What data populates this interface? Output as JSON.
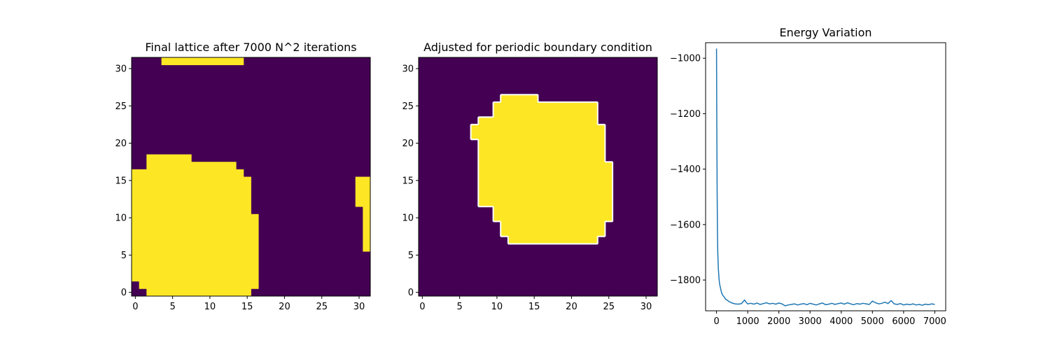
{
  "chart_data": [
    {
      "type": "heatmap",
      "title": "Final lattice after 7000 N^2 iterations",
      "grid_size": 32,
      "values": [
        0,
        1
      ],
      "colors": {
        "0": "#440154",
        "1": "#fde725"
      },
      "filled_cells": [
        {
          "rows": [
            0,
            0
          ],
          "cols": [
            2,
            15
          ]
        },
        {
          "rows": [
            1,
            1
          ],
          "cols": [
            1,
            16
          ]
        },
        {
          "rows": [
            2,
            2
          ],
          "cols": [
            0,
            16
          ]
        },
        {
          "rows": [
            3,
            10
          ],
          "cols": [
            0,
            16
          ]
        },
        {
          "rows": [
            11,
            15
          ],
          "cols": [
            0,
            15
          ]
        },
        {
          "rows": [
            16,
            16
          ],
          "cols": [
            0,
            14
          ]
        },
        {
          "rows": [
            17,
            17
          ],
          "cols": [
            2,
            13
          ]
        },
        {
          "rows": [
            18,
            18
          ],
          "cols": [
            2,
            7
          ]
        },
        {
          "rows": [
            31,
            31
          ],
          "cols": [
            4,
            14
          ]
        },
        {
          "rows": [
            6,
            11
          ],
          "cols": [
            31,
            31
          ]
        },
        {
          "rows": [
            12,
            15
          ],
          "cols": [
            30,
            31
          ]
        }
      ],
      "xticks": [
        0,
        5,
        10,
        15,
        20,
        25,
        30
      ],
      "yticks": [
        0,
        5,
        10,
        15,
        20,
        25,
        30
      ],
      "xlim": [
        -0.5,
        31.5
      ],
      "ylim": [
        -0.5,
        31.5
      ]
    },
    {
      "type": "heatmap",
      "title": "Adjusted for periodic boundary condition",
      "grid_size": 32,
      "values": [
        0,
        1
      ],
      "colors": {
        "0": "#440154",
        "1": "#fde725",
        "contour": "#ffffff"
      },
      "filled_cells": [
        {
          "rows": [
            7,
            7
          ],
          "cols": [
            12,
            23
          ]
        },
        {
          "rows": [
            8,
            9
          ],
          "cols": [
            11,
            24
          ]
        },
        {
          "rows": [
            10,
            11
          ],
          "cols": [
            10,
            25
          ]
        },
        {
          "rows": [
            12,
            17
          ],
          "cols": [
            8,
            25
          ]
        },
        {
          "rows": [
            18,
            20
          ],
          "cols": [
            8,
            24
          ]
        },
        {
          "rows": [
            21,
            22
          ],
          "cols": [
            7,
            24
          ]
        },
        {
          "rows": [
            23,
            23
          ],
          "cols": [
            8,
            23
          ]
        },
        {
          "rows": [
            24,
            25
          ],
          "cols": [
            10,
            23
          ]
        },
        {
          "rows": [
            26,
            26
          ],
          "cols": [
            11,
            15
          ]
        }
      ],
      "xticks": [
        0,
        5,
        10,
        15,
        20,
        25,
        30
      ],
      "yticks": [
        0,
        5,
        10,
        15,
        20,
        25,
        30
      ],
      "xlim": [
        -0.5,
        31.5
      ],
      "ylim": [
        -0.5,
        31.5
      ]
    },
    {
      "type": "line",
      "title": "Energy Variation",
      "series": [
        {
          "x": [
            0,
            10,
            20,
            30,
            40,
            60,
            80,
            100,
            130,
            160,
            200,
            250,
            300,
            350,
            400,
            450,
            500,
            600,
            700,
            800,
            900,
            950,
            1000,
            1100,
            1200,
            1300,
            1400,
            1500,
            1600,
            1700,
            1800,
            1900,
            2000,
            2100,
            2200,
            2300,
            2400,
            2500,
            2600,
            2700,
            2800,
            2900,
            3000,
            3100,
            3200,
            3300,
            3400,
            3500,
            3600,
            3700,
            3800,
            3900,
            4000,
            4100,
            4200,
            4300,
            4400,
            4500,
            4600,
            4700,
            4800,
            4900,
            5000,
            5100,
            5200,
            5300,
            5400,
            5500,
            5600,
            5700,
            5800,
            5900,
            6000,
            6100,
            6200,
            6300,
            6400,
            6500,
            6600,
            6700,
            6800,
            6900,
            7000
          ],
          "y": [
            -965,
            -1250,
            -1480,
            -1620,
            -1700,
            -1760,
            -1795,
            -1815,
            -1830,
            -1845,
            -1855,
            -1862,
            -1870,
            -1873,
            -1878,
            -1880,
            -1883,
            -1886,
            -1887,
            -1885,
            -1872,
            -1880,
            -1886,
            -1884,
            -1887,
            -1883,
            -1888,
            -1885,
            -1882,
            -1886,
            -1884,
            -1887,
            -1883,
            -1886,
            -1893,
            -1890,
            -1888,
            -1886,
            -1890,
            -1887,
            -1885,
            -1889,
            -1884,
            -1887,
            -1890,
            -1886,
            -1883,
            -1889,
            -1887,
            -1884,
            -1888,
            -1885,
            -1883,
            -1887,
            -1882,
            -1886,
            -1889,
            -1885,
            -1887,
            -1884,
            -1886,
            -1888,
            -1876,
            -1882,
            -1886,
            -1884,
            -1880,
            -1885,
            -1874,
            -1886,
            -1888,
            -1885,
            -1890,
            -1887,
            -1889,
            -1886,
            -1890,
            -1888,
            -1891,
            -1887,
            -1889,
            -1886,
            -1888
          ],
          "color": "#1f77b4"
        }
      ],
      "xticks": [
        0,
        1000,
        2000,
        3000,
        4000,
        5000,
        6000,
        7000
      ],
      "yticks": [
        -1000,
        -1200,
        -1400,
        -1600,
        -1800
      ],
      "xlim": [
        -350,
        7350
      ],
      "ylim": [
        -1911,
        -944
      ]
    }
  ]
}
